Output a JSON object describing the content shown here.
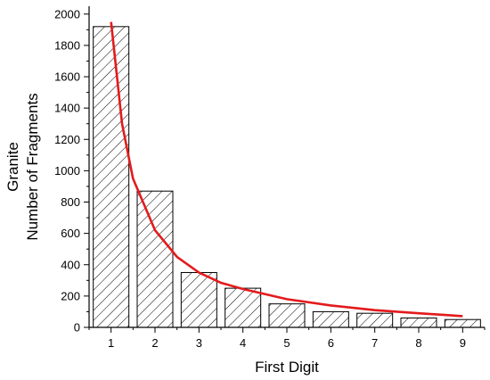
{
  "chart_data": {
    "type": "bar",
    "xlabel": "First Digit",
    "ylabel_lines": [
      "Granite",
      "Number of Fragments"
    ],
    "categories": [
      "1",
      "2",
      "3",
      "4",
      "5",
      "6",
      "7",
      "8",
      "9"
    ],
    "values": [
      1920,
      870,
      350,
      250,
      150,
      100,
      90,
      60,
      50
    ],
    "yticks": [
      "0",
      "200",
      "400",
      "600",
      "800",
      "1000",
      "1200",
      "1400",
      "1600",
      "1800",
      "2000"
    ],
    "ylim": [
      0,
      2050
    ],
    "xlim": [
      0.5,
      9.5
    ],
    "bar_fill": "diagonal-hatch",
    "fit_curve": {
      "color": "#e31a1c",
      "x": [
        1.0,
        1.25,
        1.5,
        2.0,
        2.5,
        3.0,
        3.5,
        4.0,
        5.0,
        6.0,
        7.0,
        8.0,
        9.0
      ],
      "y": [
        1950,
        1300,
        950,
        620,
        450,
        350,
        285,
        245,
        180,
        140,
        110,
        90,
        72
      ]
    }
  }
}
